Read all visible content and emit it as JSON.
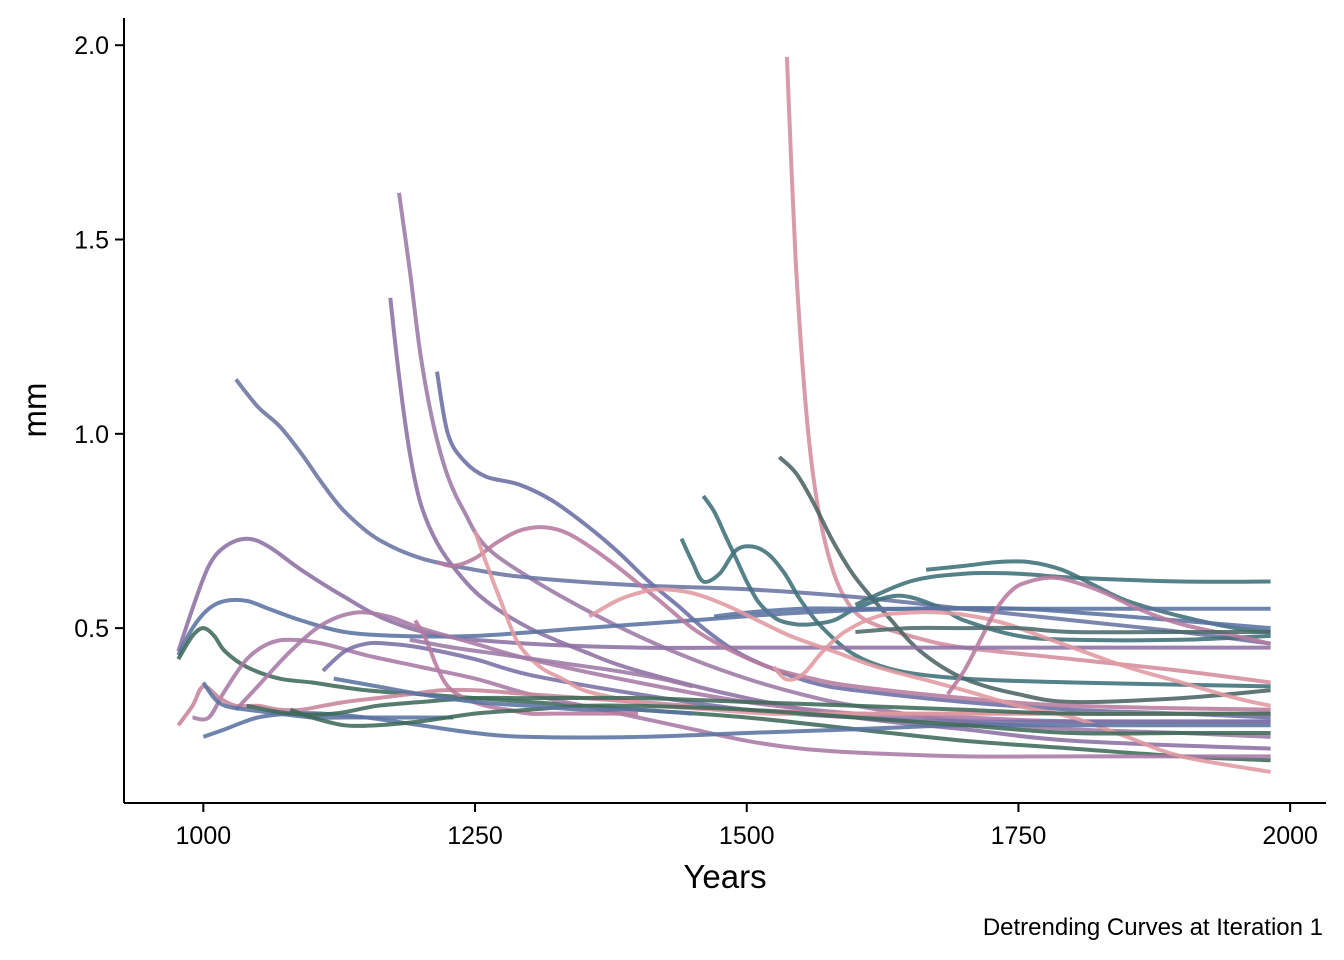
{
  "chart_data": {
    "type": "line",
    "caption": "Detrending Curves at Iteration 1",
    "xlabel": "Years",
    "ylabel": "mm",
    "xlim": [
      927,
      2033
    ],
    "ylim": [
      0.05,
      2.07
    ],
    "x_ticks": [
      1000,
      1250,
      1500,
      1750,
      2000
    ],
    "x_tick_labels": [
      "1000",
      "1250",
      "1500",
      "1750",
      "2000"
    ],
    "y_ticks": [
      0.5,
      1.0,
      1.5,
      2.0
    ],
    "y_tick_labels": [
      "0.5",
      "1.0",
      "1.5",
      "2.0"
    ],
    "grid": false,
    "legend": "none",
    "series": [
      {
        "color": "#d48c9e",
        "x": [
          1537,
          1545,
          1555,
          1565,
          1578,
          1592,
          1610,
          1650,
          1700,
          1800,
          1900,
          1982
        ],
        "y": [
          1.97,
          1.45,
          1.05,
          0.82,
          0.66,
          0.57,
          0.52,
          0.48,
          0.45,
          0.42,
          0.39,
          0.36
        ]
      },
      {
        "color": "#9c7aa6",
        "x": [
          1180,
          1190,
          1200,
          1212,
          1225,
          1240,
          1260,
          1300,
          1350,
          1400,
          1450,
          1500,
          1550,
          1600,
          1700,
          1800,
          1900,
          1982
        ],
        "y": [
          1.62,
          1.42,
          1.2,
          1.02,
          0.89,
          0.8,
          0.71,
          0.63,
          0.55,
          0.48,
          0.42,
          0.37,
          0.33,
          0.3,
          0.26,
          0.24,
          0.23,
          0.22
        ]
      },
      {
        "color": "#8d6fa3",
        "x": [
          1172,
          1180,
          1190,
          1200,
          1215,
          1235,
          1260,
          1300,
          1350,
          1400,
          1500,
          1600,
          1700,
          1800,
          1982
        ],
        "y": [
          1.35,
          1.15,
          0.95,
          0.82,
          0.72,
          0.64,
          0.57,
          0.5,
          0.44,
          0.39,
          0.32,
          0.27,
          0.24,
          0.21,
          0.19
        ]
      },
      {
        "color": "#6a74a0",
        "x": [
          1030,
          1050,
          1070,
          1090,
          1110,
          1130,
          1160,
          1200,
          1250,
          1300,
          1400,
          1500,
          1600,
          1700,
          1800,
          1900,
          1982
        ],
        "y": [
          1.14,
          1.07,
          1.02,
          0.95,
          0.87,
          0.8,
          0.73,
          0.68,
          0.65,
          0.63,
          0.61,
          0.6,
          0.58,
          0.55,
          0.52,
          0.49,
          0.46
        ]
      },
      {
        "color": "#6b6ea4",
        "x": [
          1215,
          1225,
          1240,
          1260,
          1290,
          1320,
          1350,
          1380,
          1410,
          1440,
          1460,
          1490,
          1520,
          1560,
          1600,
          1700,
          1800,
          1900,
          1982
        ],
        "y": [
          1.16,
          1.0,
          0.93,
          0.89,
          0.87,
          0.83,
          0.77,
          0.7,
          0.62,
          0.55,
          0.5,
          0.44,
          0.4,
          0.36,
          0.34,
          0.31,
          0.29,
          0.28,
          0.27
        ]
      },
      {
        "color": "#4b6363",
        "x": [
          1530,
          1545,
          1560,
          1580,
          1600,
          1630,
          1660,
          1700,
          1750,
          1800,
          1900,
          1982
        ],
        "y": [
          0.94,
          0.9,
          0.83,
          0.72,
          0.63,
          0.53,
          0.44,
          0.37,
          0.33,
          0.31,
          0.32,
          0.34
        ]
      },
      {
        "color": "#3e7078",
        "x": [
          1460,
          1470,
          1480,
          1490,
          1500,
          1510,
          1520,
          1530,
          1545,
          1560,
          1580,
          1600,
          1630,
          1650,
          1680,
          1700,
          1750,
          1800,
          1900,
          1982
        ],
        "y": [
          0.84,
          0.8,
          0.74,
          0.68,
          0.62,
          0.57,
          0.54,
          0.52,
          0.51,
          0.51,
          0.52,
          0.55,
          0.58,
          0.58,
          0.55,
          0.52,
          0.48,
          0.47,
          0.47,
          0.48
        ]
      },
      {
        "color": "#3e7078",
        "x": [
          1440,
          1450,
          1460,
          1475,
          1490,
          1505,
          1520,
          1535,
          1550,
          1570,
          1600,
          1640,
          1700,
          1800,
          1982
        ],
        "y": [
          0.73,
          0.67,
          0.62,
          0.64,
          0.7,
          0.71,
          0.69,
          0.64,
          0.57,
          0.5,
          0.43,
          0.39,
          0.37,
          0.36,
          0.35
        ]
      },
      {
        "color": "#3e7078",
        "x": [
          1665,
          1700,
          1730,
          1760,
          1790,
          1820,
          1850,
          1900,
          1950,
          1982
        ],
        "y": [
          0.65,
          0.66,
          0.67,
          0.67,
          0.65,
          0.61,
          0.57,
          0.53,
          0.5,
          0.49
        ]
      },
      {
        "color": "#3e7078",
        "x": [
          1600,
          1650,
          1700,
          1750,
          1800,
          1900,
          1982
        ],
        "y": [
          0.56,
          0.62,
          0.64,
          0.64,
          0.63,
          0.62,
          0.62
        ]
      },
      {
        "color": "#5a73a0",
        "x": [
          1470,
          1500,
          1550,
          1600,
          1700,
          1800,
          1900,
          1982
        ],
        "y": [
          0.53,
          0.54,
          0.55,
          0.55,
          0.55,
          0.55,
          0.55,
          0.55
        ]
      },
      {
        "color": "#8d6fa3",
        "x": [
          977,
          990,
          1005,
          1020,
          1040,
          1060,
          1090,
          1130,
          1170,
          1220,
          1300,
          1400,
          1500,
          1600,
          1700,
          1800,
          1900,
          1982
        ],
        "y": [
          0.44,
          0.55,
          0.66,
          0.71,
          0.73,
          0.71,
          0.65,
          0.58,
          0.52,
          0.48,
          0.46,
          0.45,
          0.45,
          0.45,
          0.45,
          0.45,
          0.45,
          0.45
        ]
      },
      {
        "color": "#5a73a0",
        "x": [
          977,
          990,
          1005,
          1020,
          1040,
          1060,
          1090,
          1130,
          1180,
          1250,
          1350,
          1450,
          1550,
          1650,
          1750,
          1850,
          1982
        ],
        "y": [
          0.43,
          0.5,
          0.55,
          0.57,
          0.57,
          0.55,
          0.52,
          0.49,
          0.48,
          0.48,
          0.5,
          0.52,
          0.54,
          0.55,
          0.55,
          0.53,
          0.5
        ]
      },
      {
        "color": "#3e6a58",
        "x": [
          977,
          990,
          1000,
          1010,
          1020,
          1040,
          1070,
          1100,
          1150,
          1200,
          1300,
          1400,
          1500,
          1600,
          1700,
          1800,
          1900,
          1982
        ],
        "y": [
          0.42,
          0.48,
          0.5,
          0.48,
          0.44,
          0.4,
          0.37,
          0.36,
          0.34,
          0.33,
          0.31,
          0.29,
          0.27,
          0.24,
          0.21,
          0.19,
          0.17,
          0.16
        ]
      },
      {
        "color": "#a77aa6",
        "x": [
          990,
          1005,
          1020,
          1040,
          1060,
          1080,
          1110,
          1150,
          1200,
          1250,
          1300,
          1350,
          1400,
          1450,
          1500,
          1550,
          1600,
          1700,
          1800,
          1982
        ],
        "y": [
          0.27,
          0.27,
          0.34,
          0.42,
          0.46,
          0.47,
          0.46,
          0.43,
          0.4,
          0.37,
          0.33,
          0.3,
          0.27,
          0.24,
          0.21,
          0.19,
          0.18,
          0.17,
          0.17,
          0.17
        ]
      },
      {
        "color": "#c7849a",
        "x": [
          977,
          990,
          1000,
          1015,
          1030,
          1050,
          1070,
          1090,
          1110,
          1130,
          1160,
          1190,
          1220,
          1250,
          1300,
          1400,
          1500,
          1600,
          1700,
          1800,
          1982
        ],
        "y": [
          0.25,
          0.3,
          0.35,
          0.32,
          0.3,
          0.3,
          0.29,
          0.29,
          0.3,
          0.31,
          0.32,
          0.33,
          0.34,
          0.34,
          0.33,
          0.31,
          0.29,
          0.28,
          0.28,
          0.28,
          0.28
        ]
      },
      {
        "color": "#a77aa6",
        "x": [
          1030,
          1050,
          1080,
          1110,
          1140,
          1170,
          1200,
          1250,
          1300,
          1400,
          1500,
          1600,
          1700,
          1800,
          1982
        ],
        "y": [
          0.29,
          0.35,
          0.44,
          0.51,
          0.54,
          0.53,
          0.5,
          0.46,
          0.42,
          0.36,
          0.31,
          0.28,
          0.27,
          0.26,
          0.26
        ]
      },
      {
        "color": "#7a70a6",
        "x": [
          1110,
          1130,
          1150,
          1170,
          1200,
          1250,
          1300,
          1400,
          1500,
          1600,
          1700,
          1800,
          1982
        ],
        "y": [
          0.39,
          0.44,
          0.46,
          0.46,
          0.45,
          0.42,
          0.38,
          0.33,
          0.29,
          0.27,
          0.26,
          0.26,
          0.26
        ]
      },
      {
        "color": "#b77a9e",
        "x": [
          1195,
          1205,
          1215,
          1225,
          1240,
          1260,
          1280,
          1300,
          1320,
          1350,
          1400
        ],
        "y": [
          0.52,
          0.47,
          0.4,
          0.35,
          0.32,
          0.3,
          0.29,
          0.28,
          0.28,
          0.28,
          0.28
        ]
      },
      {
        "color": "#b77a9e",
        "x": [
          1215,
          1230,
          1250,
          1270,
          1290,
          1310,
          1330,
          1350,
          1380,
          1420,
          1450,
          1480,
          1520,
          1560,
          1600,
          1700,
          1800,
          1982
        ],
        "y": [
          0.67,
          0.66,
          0.68,
          0.72,
          0.75,
          0.76,
          0.75,
          0.72,
          0.66,
          0.57,
          0.5,
          0.45,
          0.4,
          0.37,
          0.35,
          0.32,
          0.3,
          0.29
        ]
      },
      {
        "color": "#e09aa0",
        "x": [
          1250,
          1260,
          1275,
          1290,
          1310,
          1330,
          1350,
          1380,
          1420,
          1470,
          1520,
          1570,
          1620,
          1700,
          1800,
          1900,
          1982
        ],
        "y": [
          0.75,
          0.67,
          0.56,
          0.46,
          0.4,
          0.37,
          0.34,
          0.32,
          0.3,
          0.29,
          0.28,
          0.28,
          0.28,
          0.28,
          0.28,
          0.28,
          0.28
        ]
      },
      {
        "color": "#e09aa0",
        "x": [
          1355,
          1380,
          1400,
          1420,
          1450,
          1480,
          1510,
          1540,
          1580,
          1620,
          1660,
          1700,
          1750,
          1800,
          1850,
          1900,
          1982
        ],
        "y": [
          0.53,
          0.57,
          0.59,
          0.6,
          0.59,
          0.56,
          0.52,
          0.48,
          0.44,
          0.4,
          0.37,
          0.34,
          0.3,
          0.27,
          0.22,
          0.17,
          0.13
        ]
      },
      {
        "color": "#e09aa0",
        "x": [
          1525,
          1535,
          1545,
          1555,
          1570,
          1590,
          1620,
          1650,
          1680,
          1710,
          1740,
          1770,
          1800,
          1850,
          1900,
          1950,
          1982
        ],
        "y": [
          0.4,
          0.37,
          0.37,
          0.39,
          0.44,
          0.49,
          0.53,
          0.54,
          0.54,
          0.53,
          0.51,
          0.48,
          0.45,
          0.4,
          0.36,
          0.32,
          0.3
        ]
      },
      {
        "color": "#b77a9e",
        "x": [
          1685,
          1700,
          1715,
          1730,
          1745,
          1760,
          1780,
          1800,
          1830,
          1860,
          1900,
          1950,
          1982
        ],
        "y": [
          0.33,
          0.39,
          0.47,
          0.55,
          0.6,
          0.62,
          0.63,
          0.62,
          0.59,
          0.55,
          0.51,
          0.48,
          0.46
        ]
      },
      {
        "color": "#4b6a6a",
        "x": [
          1600,
          1650,
          1700,
          1750,
          1800,
          1900,
          1982
        ],
        "y": [
          0.49,
          0.5,
          0.5,
          0.5,
          0.49,
          0.49,
          0.49
        ]
      },
      {
        "color": "#5a73a0",
        "x": [
          1000,
          1020,
          1050,
          1080,
          1110,
          1150,
          1200,
          1250,
          1300,
          1400,
          1500,
          1600,
          1700,
          1800,
          1982
        ],
        "y": [
          0.22,
          0.24,
          0.27,
          0.28,
          0.28,
          0.27,
          0.25,
          0.23,
          0.22,
          0.22,
          0.23,
          0.24,
          0.25,
          0.25,
          0.25
        ]
      },
      {
        "color": "#5a73a0",
        "x": [
          1000,
          1010,
          1020,
          1040,
          1070,
          1100,
          1130,
          1160,
          1190,
          1230
        ],
        "y": [
          0.36,
          0.32,
          0.3,
          0.29,
          0.28,
          0.27,
          0.27,
          0.27,
          0.27,
          0.27
        ]
      },
      {
        "color": "#3e6a58",
        "x": [
          1080,
          1100,
          1130,
          1160,
          1200,
          1250,
          1300,
          1350,
          1400,
          1500,
          1600,
          1700,
          1800,
          1900,
          1982
        ],
        "y": [
          0.29,
          0.27,
          0.25,
          0.25,
          0.26,
          0.28,
          0.29,
          0.3,
          0.3,
          0.29,
          0.27,
          0.25,
          0.23,
          0.23,
          0.23
        ]
      },
      {
        "color": "#3e6a58",
        "x": [
          1040,
          1080,
          1120,
          1160,
          1200,
          1250,
          1300,
          1400,
          1500,
          1600,
          1700,
          1800,
          1982
        ],
        "y": [
          0.3,
          0.28,
          0.28,
          0.3,
          0.31,
          0.32,
          0.32,
          0.32,
          0.31,
          0.3,
          0.29,
          0.28,
          0.28
        ]
      },
      {
        "color": "#5a73a0",
        "x": [
          1120,
          1160,
          1200,
          1250,
          1300,
          1350,
          1400,
          1450
        ],
        "y": [
          0.37,
          0.35,
          0.33,
          0.31,
          0.3,
          0.29,
          0.29,
          0.28
        ]
      },
      {
        "color": "#9c7aa6",
        "x": [
          1190,
          1230,
          1280,
          1330,
          1380,
          1420,
          1450
        ],
        "y": [
          0.47,
          0.45,
          0.43,
          0.41,
          0.39,
          0.37,
          0.35
        ]
      }
    ]
  }
}
